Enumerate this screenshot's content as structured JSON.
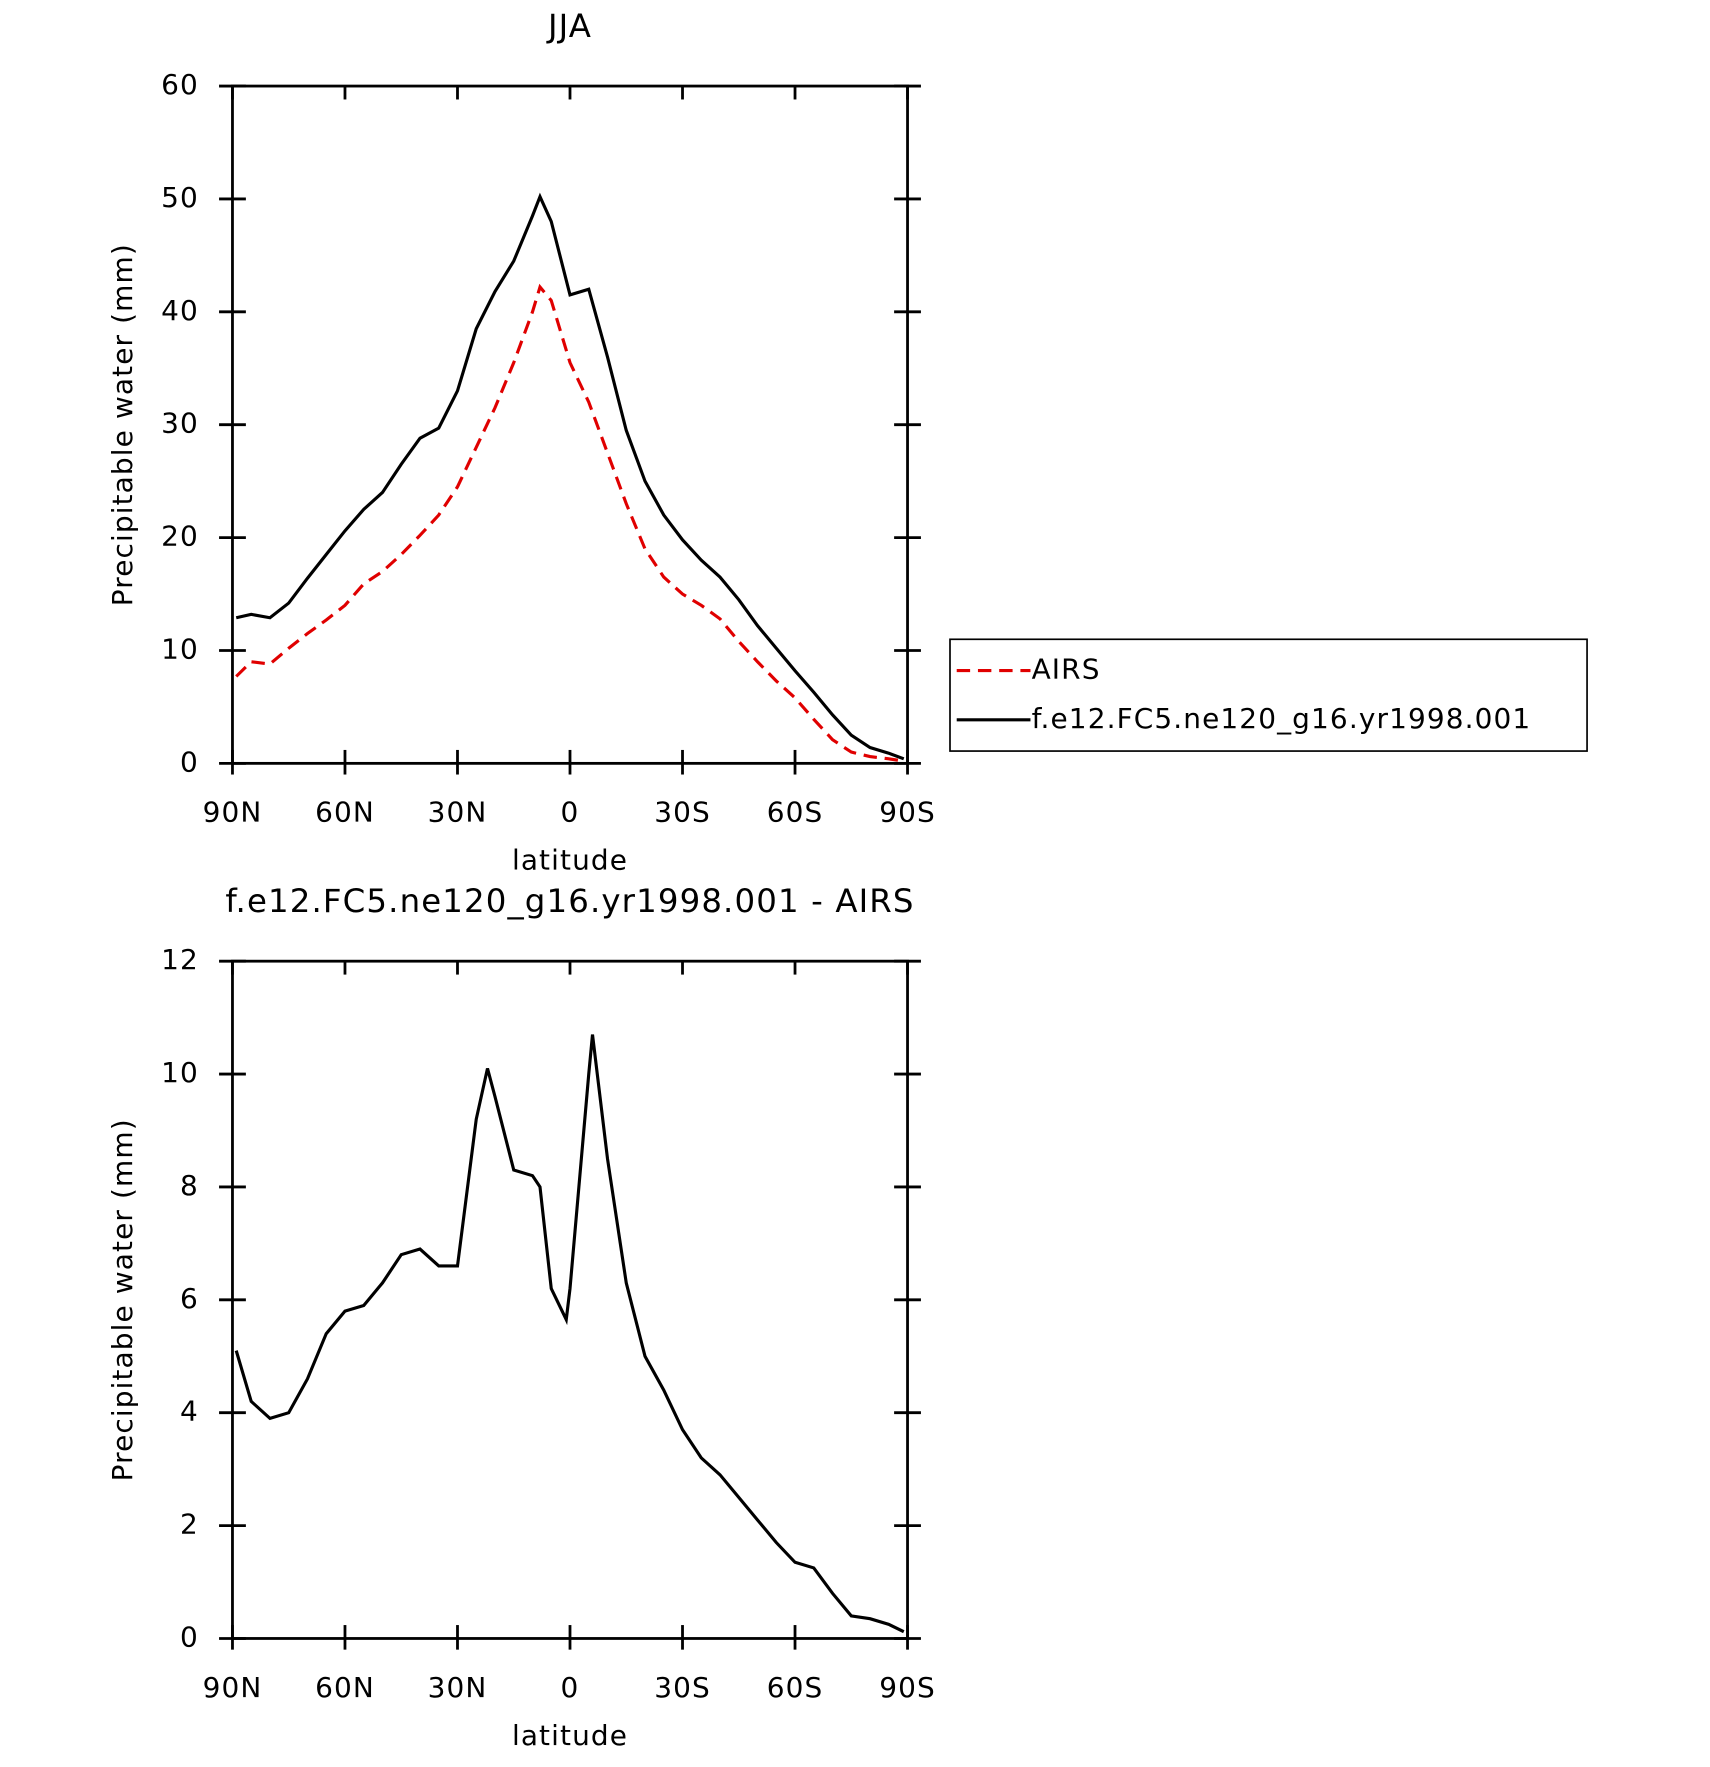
{
  "chart_data": [
    {
      "type": "line",
      "title": "JJA",
      "x_label": "latitude",
      "y_label": "Precipitable water (mm)",
      "xlim": [
        90,
        -90
      ],
      "xticks": [
        {
          "value": 90,
          "label": "90N"
        },
        {
          "value": 60,
          "label": "60N"
        },
        {
          "value": 30,
          "label": "30N"
        },
        0,
        {
          "value": -30,
          "label": "30S"
        },
        {
          "value": -60,
          "label": "60S"
        },
        {
          "value": -90,
          "label": "90S"
        }
      ],
      "ylim": [
        0,
        60
      ],
      "yticks": [
        0,
        10,
        20,
        30,
        40,
        50,
        60
      ],
      "legend": "right",
      "x": [
        89,
        85,
        80,
        75,
        70,
        65,
        60,
        55,
        50,
        45,
        40,
        35,
        30,
        25,
        20,
        15,
        10,
        8,
        5,
        0,
        -5,
        -10,
        -15,
        -20,
        -25,
        -30,
        -35,
        -40,
        -45,
        -50,
        -55,
        -60,
        -65,
        -70,
        -75,
        -80,
        -85,
        -89
      ],
      "series": [
        {
          "name": "AIRS",
          "color": "#e00000",
          "dash": true,
          "values": [
            7.7,
            9,
            8.8,
            10.2,
            11.5,
            12.7,
            14,
            15.9,
            17,
            18.5,
            20.2,
            22,
            24.5,
            28,
            31.5,
            35.5,
            40,
            42.2,
            41,
            35.5,
            32,
            27.5,
            23,
            19,
            16.5,
            15,
            14,
            12.8,
            10.8,
            9,
            7.3,
            5.8,
            3.9,
            2.1,
            1,
            0.6,
            0.4,
            0.2
          ]
        },
        {
          "name": "f.e12.FC5.ne120_g16.yr1998.001",
          "color": "#000000",
          "dash": false,
          "values": [
            12.9,
            13.2,
            12.9,
            14.2,
            16.4,
            18.5,
            20.6,
            22.5,
            24,
            26.5,
            28.8,
            29.7,
            33,
            38.5,
            41.8,
            44.5,
            48.5,
            50.2,
            48,
            41.5,
            42,
            36,
            29.5,
            25,
            22,
            19.8,
            18,
            16.5,
            14.5,
            12.2,
            10.2,
            8.2,
            6.3,
            4.3,
            2.5,
            1.4,
            0.9,
            0.4
          ]
        }
      ]
    },
    {
      "type": "line",
      "title": "f.e12.FC5.ne120_g16.yr1998.001 - AIRS",
      "x_label": "latitude",
      "y_label": "Precipitable water (mm)",
      "xlim": [
        90,
        -90
      ],
      "xticks": [
        {
          "value": 90,
          "label": "90N"
        },
        {
          "value": 60,
          "label": "60N"
        },
        {
          "value": 30,
          "label": "30N"
        },
        0,
        {
          "value": -30,
          "label": "30S"
        },
        {
          "value": -60,
          "label": "60S"
        },
        {
          "value": -90,
          "label": "90S"
        }
      ],
      "ylim": [
        0,
        12
      ],
      "yticks": [
        0,
        2,
        4,
        6,
        8,
        10,
        12
      ],
      "x": [
        89,
        85,
        80,
        75,
        70,
        65,
        60,
        55,
        50,
        45,
        40,
        35,
        30,
        25,
        22,
        20,
        15,
        10,
        8,
        5,
        1,
        0,
        -5,
        -6,
        -10,
        -15,
        -20,
        -25,
        -30,
        -35,
        -40,
        -45,
        -50,
        -55,
        -60,
        -65,
        -70,
        -75,
        -80,
        -85,
        -89
      ],
      "series": [
        {
          "color": "#000000",
          "values": [
            5.1,
            4.2,
            3.9,
            4,
            4.6,
            5.4,
            5.8,
            5.9,
            6.3,
            6.8,
            6.9,
            6.6,
            6.6,
            9.2,
            10.1,
            9.6,
            8.3,
            8.2,
            8,
            6.2,
            5.65,
            6.2,
            10,
            10.7,
            8.5,
            6.3,
            5,
            4.4,
            3.7,
            3.2,
            2.9,
            2.5,
            2.1,
            1.7,
            1.35,
            1.25,
            0.8,
            0.4,
            0.35,
            0.25,
            0.12
          ]
        }
      ]
    }
  ]
}
